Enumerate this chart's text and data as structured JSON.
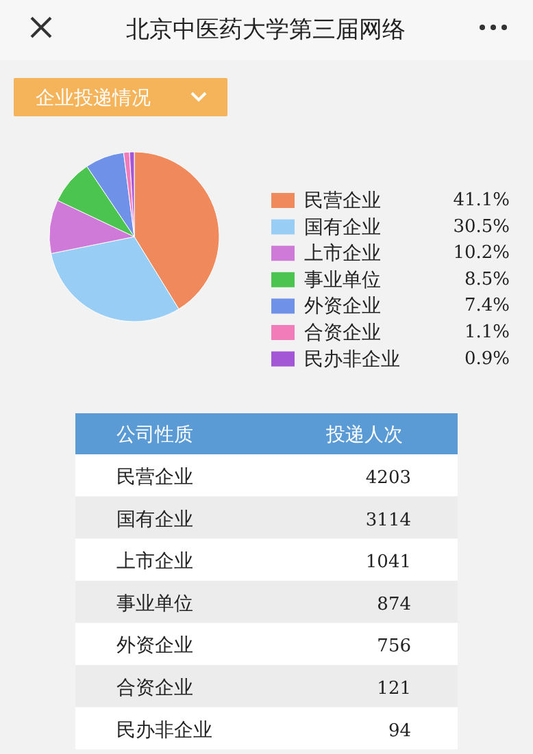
{
  "chart_data": [
    {
      "type": "pie",
      "title": "北京中医药大学第三届网络",
      "subtitle": "企业投递情况",
      "legend": "right",
      "categories": [
        "民营企业",
        "国有企业",
        "上市企业",
        "事业单位",
        "外资企业",
        "合资企业",
        "民办非企业"
      ],
      "values": [
        41.1,
        30.5,
        10.2,
        8.5,
        7.4,
        1.1,
        0.9
      ],
      "value_labels": [
        "41.1%",
        "30.5%",
        "10.2%",
        "8.5%",
        "7.4%",
        "1.1%",
        "0.9%"
      ],
      "colors": [
        "#f08a5d",
        "#98cdf5",
        "#cf7ad9",
        "#4cc450",
        "#6f91e8",
        "#f27cba",
        "#a356d6"
      ]
    },
    {
      "type": "other",
      "xlabel": "公司性质",
      "ylabel": "投递人次",
      "categories": [
        "民营企业",
        "国有企业",
        "上市企业",
        "事业单位",
        "外资企业",
        "合资企业",
        "民办非企业"
      ],
      "values": [
        4203,
        3114,
        1041,
        874,
        756,
        121,
        94
      ],
      "data_labels": true
    }
  ]
}
